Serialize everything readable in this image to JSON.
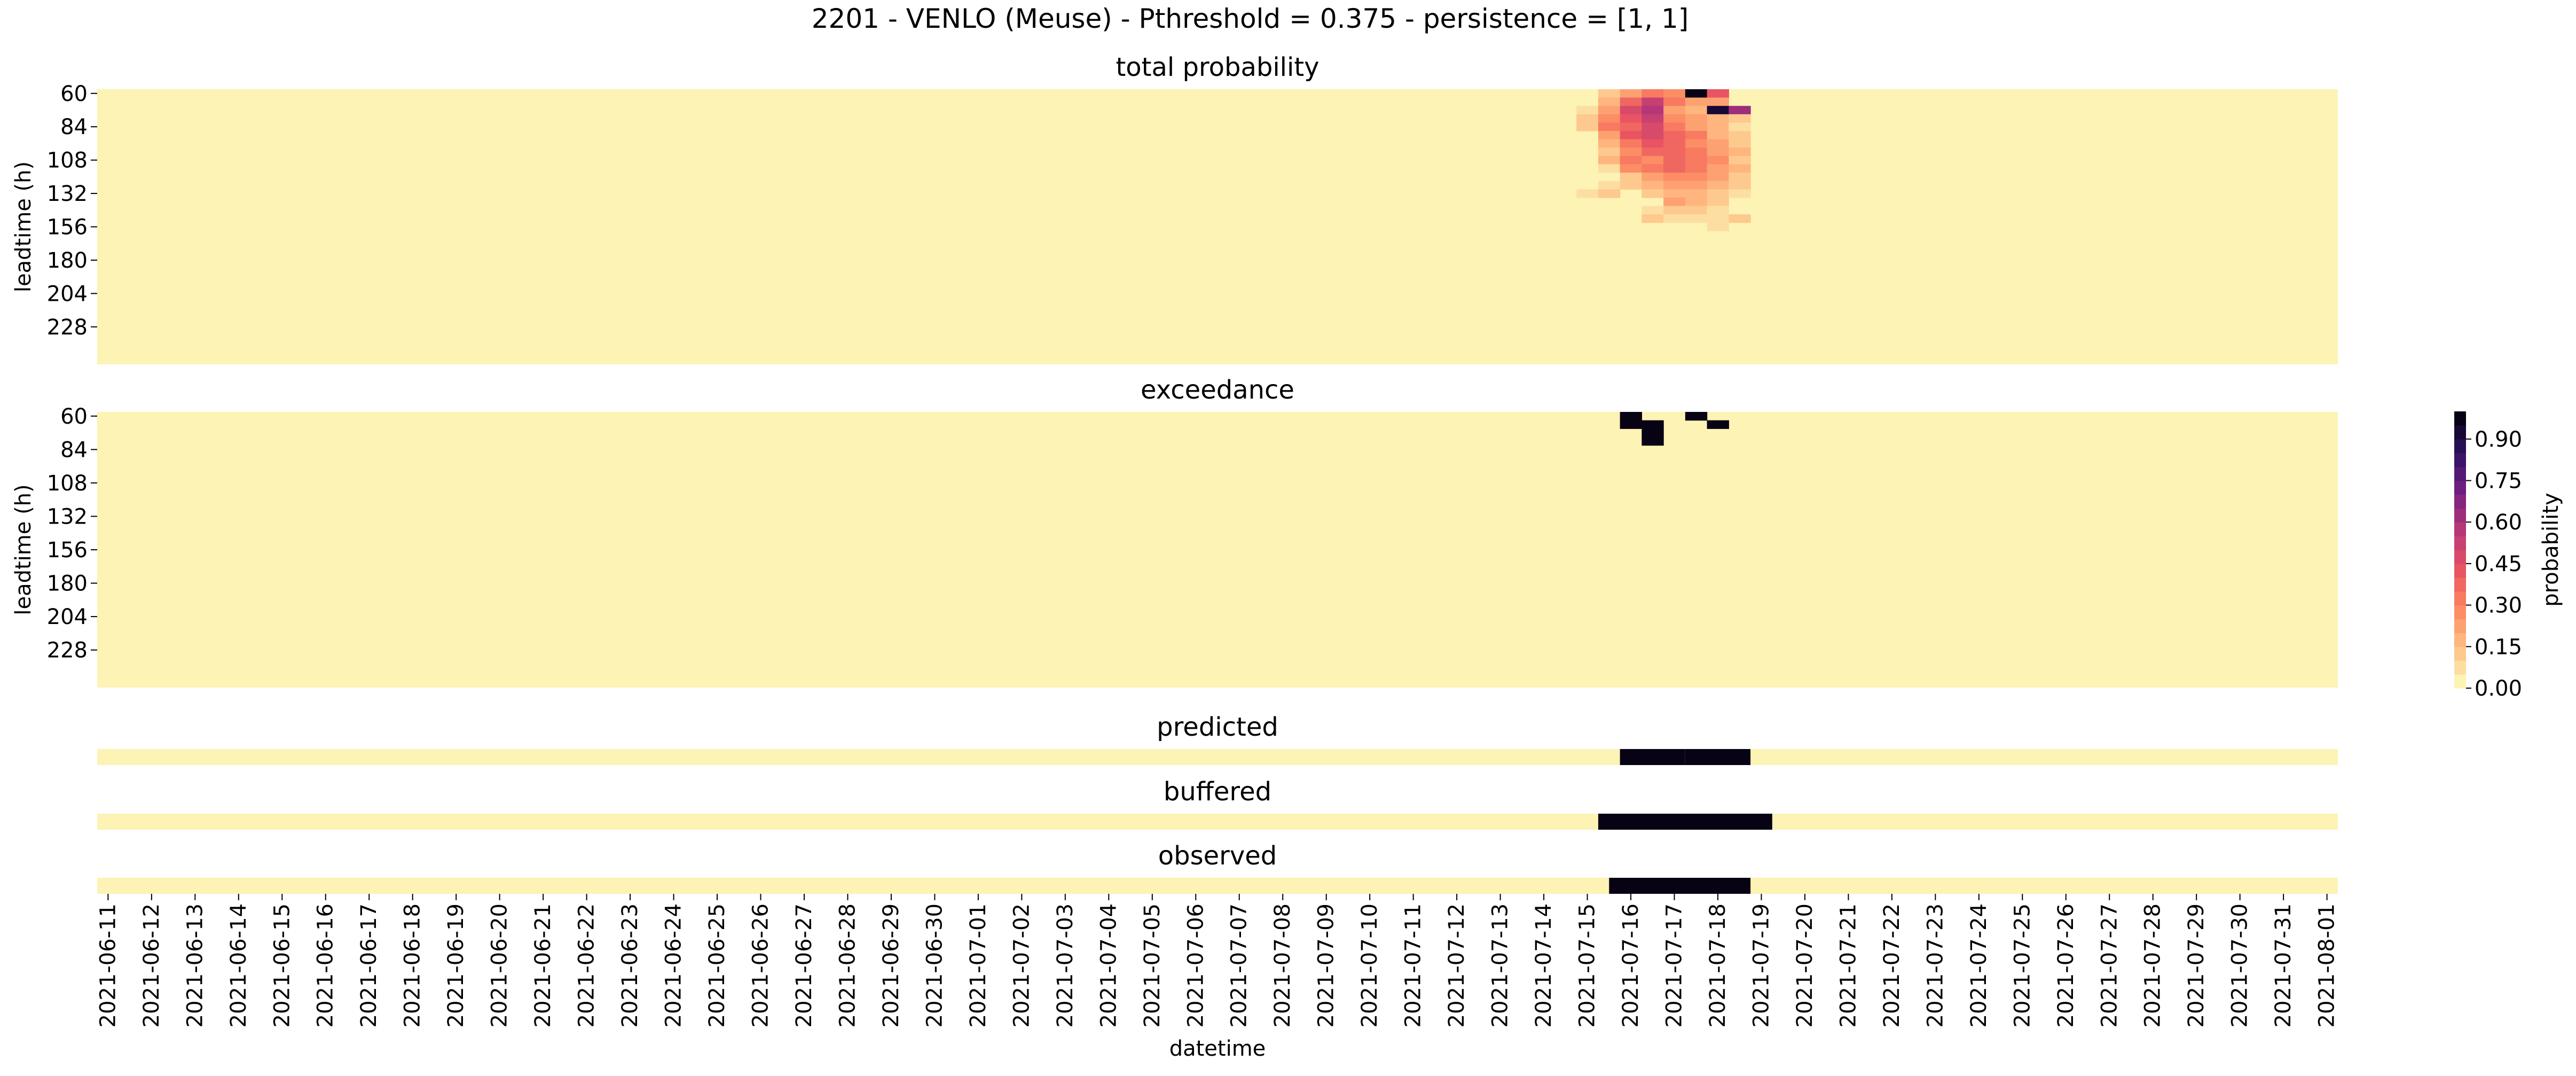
{
  "figure": {
    "title": "2201 - VENLO (Meuse) - Pthreshold = 0.375 - persistence = [1, 1]"
  },
  "colormap": {
    "name": "magma_r",
    "stops": [
      "#fcfdbf",
      "#fec287",
      "#fc8961",
      "#e85362",
      "#b73779",
      "#721f81",
      "#2c115f",
      "#000004"
    ]
  },
  "colorbar": {
    "label": "probability",
    "range": [
      0,
      1
    ],
    "levels": 20,
    "ticks": [
      0.0,
      0.15,
      0.3,
      0.45,
      0.6,
      0.75,
      0.9
    ],
    "tick_labels": [
      "0.00",
      "0.15",
      "0.30",
      "0.45",
      "0.60",
      "0.75",
      "0.90"
    ]
  },
  "chart_data": [
    {
      "type": "heatmap",
      "id": "total",
      "title": "total probability",
      "ylabel": "leadtime (h)",
      "xlabel": "",
      "y_tick_labels": [
        "60",
        "84",
        "108",
        "132",
        "156",
        "180",
        "204",
        "228"
      ],
      "leadtime_range_h": [
        60,
        252
      ],
      "leadtime_step_h": 6,
      "time_range": [
        "2021-06-11",
        "2021-08-01"
      ],
      "time_step_h": 12,
      "background_value": 0.0,
      "cells": [
        {
          "t": "2021-07-15T12",
          "l": 60,
          "v": 0.1
        },
        {
          "t": "2021-07-16T00",
          "l": 60,
          "v": 0.2
        },
        {
          "t": "2021-07-16T12",
          "l": 60,
          "v": 0.3
        },
        {
          "t": "2021-07-17T00",
          "l": 60,
          "v": 0.25
        },
        {
          "t": "2021-07-17T12",
          "l": 60,
          "v": 1.0
        },
        {
          "t": "2021-07-18T00",
          "l": 60,
          "v": 0.4
        },
        {
          "t": "2021-07-15T12",
          "l": 66,
          "v": 0.15
        },
        {
          "t": "2021-07-16T00",
          "l": 66,
          "v": 0.35
        },
        {
          "t": "2021-07-16T12",
          "l": 66,
          "v": 0.5
        },
        {
          "t": "2021-07-17T00",
          "l": 66,
          "v": 0.3
        },
        {
          "t": "2021-07-17T12",
          "l": 66,
          "v": 0.2
        },
        {
          "t": "2021-07-18T00",
          "l": 66,
          "v": 0.2
        },
        {
          "t": "2021-07-15T00",
          "l": 72,
          "v": 0.05
        },
        {
          "t": "2021-07-15T12",
          "l": 72,
          "v": 0.2
        },
        {
          "t": "2021-07-16T00",
          "l": 72,
          "v": 0.45
        },
        {
          "t": "2021-07-16T12",
          "l": 72,
          "v": 0.55
        },
        {
          "t": "2021-07-17T00",
          "l": 72,
          "v": 0.2
        },
        {
          "t": "2021-07-17T12",
          "l": 72,
          "v": 0.15
        },
        {
          "t": "2021-07-18T00",
          "l": 72,
          "v": 0.9
        },
        {
          "t": "2021-07-18T12",
          "l": 72,
          "v": 0.6
        },
        {
          "t": "2021-07-15T00",
          "l": 78,
          "v": 0.1
        },
        {
          "t": "2021-07-15T12",
          "l": 78,
          "v": 0.25
        },
        {
          "t": "2021-07-16T00",
          "l": 78,
          "v": 0.4
        },
        {
          "t": "2021-07-16T12",
          "l": 78,
          "v": 0.5
        },
        {
          "t": "2021-07-17T00",
          "l": 78,
          "v": 0.25
        },
        {
          "t": "2021-07-17T12",
          "l": 78,
          "v": 0.2
        },
        {
          "t": "2021-07-18T00",
          "l": 78,
          "v": 0.15
        },
        {
          "t": "2021-07-18T12",
          "l": 78,
          "v": 0.1
        },
        {
          "t": "2021-07-15T00",
          "l": 84,
          "v": 0.1
        },
        {
          "t": "2021-07-15T12",
          "l": 84,
          "v": 0.3
        },
        {
          "t": "2021-07-16T00",
          "l": 84,
          "v": 0.35
        },
        {
          "t": "2021-07-16T12",
          "l": 84,
          "v": 0.45
        },
        {
          "t": "2021-07-17T00",
          "l": 84,
          "v": 0.3
        },
        {
          "t": "2021-07-17T12",
          "l": 84,
          "v": 0.2
        },
        {
          "t": "2021-07-18T00",
          "l": 84,
          "v": 0.15
        },
        {
          "t": "2021-07-18T12",
          "l": 84,
          "v": 0.05
        },
        {
          "t": "2021-07-15T12",
          "l": 90,
          "v": 0.2
        },
        {
          "t": "2021-07-16T00",
          "l": 90,
          "v": 0.4
        },
        {
          "t": "2021-07-16T12",
          "l": 90,
          "v": 0.45
        },
        {
          "t": "2021-07-17T00",
          "l": 90,
          "v": 0.35
        },
        {
          "t": "2021-07-17T12",
          "l": 90,
          "v": 0.3
        },
        {
          "t": "2021-07-18T00",
          "l": 90,
          "v": 0.15
        },
        {
          "t": "2021-07-18T12",
          "l": 90,
          "v": 0.1
        },
        {
          "t": "2021-07-15T12",
          "l": 96,
          "v": 0.15
        },
        {
          "t": "2021-07-16T00",
          "l": 96,
          "v": 0.3
        },
        {
          "t": "2021-07-16T12",
          "l": 96,
          "v": 0.4
        },
        {
          "t": "2021-07-17T00",
          "l": 96,
          "v": 0.35
        },
        {
          "t": "2021-07-17T12",
          "l": 96,
          "v": 0.25
        },
        {
          "t": "2021-07-18T00",
          "l": 96,
          "v": 0.2
        },
        {
          "t": "2021-07-18T12",
          "l": 96,
          "v": 0.1
        },
        {
          "t": "2021-07-15T12",
          "l": 102,
          "v": 0.1
        },
        {
          "t": "2021-07-16T00",
          "l": 102,
          "v": 0.25
        },
        {
          "t": "2021-07-16T12",
          "l": 102,
          "v": 0.35
        },
        {
          "t": "2021-07-17T00",
          "l": 102,
          "v": 0.35
        },
        {
          "t": "2021-07-17T12",
          "l": 102,
          "v": 0.3
        },
        {
          "t": "2021-07-18T00",
          "l": 102,
          "v": 0.2
        },
        {
          "t": "2021-07-18T12",
          "l": 102,
          "v": 0.15
        },
        {
          "t": "2021-07-15T12",
          "l": 108,
          "v": 0.15
        },
        {
          "t": "2021-07-16T00",
          "l": 108,
          "v": 0.3
        },
        {
          "t": "2021-07-16T12",
          "l": 108,
          "v": 0.25
        },
        {
          "t": "2021-07-17T00",
          "l": 108,
          "v": 0.35
        },
        {
          "t": "2021-07-17T12",
          "l": 108,
          "v": 0.3
        },
        {
          "t": "2021-07-18T00",
          "l": 108,
          "v": 0.25
        },
        {
          "t": "2021-07-18T12",
          "l": 108,
          "v": 0.1
        },
        {
          "t": "2021-07-15T12",
          "l": 114,
          "v": 0.05
        },
        {
          "t": "2021-07-16T00",
          "l": 114,
          "v": 0.25
        },
        {
          "t": "2021-07-16T12",
          "l": 114,
          "v": 0.3
        },
        {
          "t": "2021-07-17T00",
          "l": 114,
          "v": 0.35
        },
        {
          "t": "2021-07-17T12",
          "l": 114,
          "v": 0.3
        },
        {
          "t": "2021-07-18T00",
          "l": 114,
          "v": 0.2
        },
        {
          "t": "2021-07-18T12",
          "l": 114,
          "v": 0.15
        },
        {
          "t": "2021-07-16T00",
          "l": 120,
          "v": 0.1
        },
        {
          "t": "2021-07-16T12",
          "l": 120,
          "v": 0.2
        },
        {
          "t": "2021-07-17T00",
          "l": 120,
          "v": 0.25
        },
        {
          "t": "2021-07-17T12",
          "l": 120,
          "v": 0.25
        },
        {
          "t": "2021-07-18T00",
          "l": 120,
          "v": 0.2
        },
        {
          "t": "2021-07-18T12",
          "l": 120,
          "v": 0.1
        },
        {
          "t": "2021-07-15T12",
          "l": 126,
          "v": 0.05
        },
        {
          "t": "2021-07-16T00",
          "l": 126,
          "v": 0.1
        },
        {
          "t": "2021-07-16T12",
          "l": 126,
          "v": 0.15
        },
        {
          "t": "2021-07-17T00",
          "l": 126,
          "v": 0.2
        },
        {
          "t": "2021-07-17T12",
          "l": 126,
          "v": 0.2
        },
        {
          "t": "2021-07-18T00",
          "l": 126,
          "v": 0.15
        },
        {
          "t": "2021-07-18T12",
          "l": 126,
          "v": 0.1
        },
        {
          "t": "2021-07-15T00",
          "l": 132,
          "v": 0.05
        },
        {
          "t": "2021-07-15T12",
          "l": 132,
          "v": 0.1
        },
        {
          "t": "2021-07-16T12",
          "l": 132,
          "v": 0.1
        },
        {
          "t": "2021-07-17T00",
          "l": 132,
          "v": 0.15
        },
        {
          "t": "2021-07-17T12",
          "l": 132,
          "v": 0.15
        },
        {
          "t": "2021-07-18T00",
          "l": 132,
          "v": 0.1
        },
        {
          "t": "2021-07-18T12",
          "l": 132,
          "v": 0.05
        },
        {
          "t": "2021-07-17T00",
          "l": 138,
          "v": 0.2
        },
        {
          "t": "2021-07-17T12",
          "l": 138,
          "v": 0.15
        },
        {
          "t": "2021-07-18T00",
          "l": 138,
          "v": 0.1
        },
        {
          "t": "2021-07-16T12",
          "l": 144,
          "v": 0.05
        },
        {
          "t": "2021-07-17T00",
          "l": 144,
          "v": 0.1
        },
        {
          "t": "2021-07-17T12",
          "l": 144,
          "v": 0.1
        },
        {
          "t": "2021-07-18T00",
          "l": 144,
          "v": 0.05
        },
        {
          "t": "2021-07-16T12",
          "l": 150,
          "v": 0.1
        },
        {
          "t": "2021-07-17T00",
          "l": 150,
          "v": 0.05
        },
        {
          "t": "2021-07-17T12",
          "l": 150,
          "v": 0.05
        },
        {
          "t": "2021-07-18T00",
          "l": 150,
          "v": 0.05
        },
        {
          "t": "2021-07-18T12",
          "l": 150,
          "v": 0.1
        },
        {
          "t": "2021-07-18T00",
          "l": 156,
          "v": 0.05
        }
      ]
    },
    {
      "type": "heatmap",
      "id": "exceedance",
      "title": "exceedance",
      "ylabel": "leadtime (h)",
      "xlabel": "",
      "y_tick_labels": [
        "60",
        "84",
        "108",
        "132",
        "156",
        "180",
        "204",
        "228"
      ],
      "leadtime_range_h": [
        60,
        252
      ],
      "leadtime_step_h": 6,
      "time_range": [
        "2021-06-11",
        "2021-08-01"
      ],
      "time_step_h": 12,
      "background_value": 0.0,
      "cells": [
        {
          "t": "2021-07-16T00",
          "l": 60,
          "v": 1
        },
        {
          "t": "2021-07-17T12",
          "l": 60,
          "v": 1
        },
        {
          "t": "2021-07-16T00",
          "l": 66,
          "v": 1
        },
        {
          "t": "2021-07-16T12",
          "l": 66,
          "v": 1
        },
        {
          "t": "2021-07-18T00",
          "l": 66,
          "v": 1
        },
        {
          "t": "2021-07-16T12",
          "l": 72,
          "v": 1
        },
        {
          "t": "2021-07-16T12",
          "l": 78,
          "v": 1
        }
      ]
    },
    {
      "type": "heatmap",
      "id": "predicted",
      "title": "predicted",
      "ylabel": "",
      "xlabel": "",
      "time_range": [
        "2021-06-11",
        "2021-08-01"
      ],
      "time_step_h": 12,
      "background_value": 0.0,
      "events": [
        {
          "start": "2021-07-16",
          "end": "2021-07-17",
          "v": 1
        },
        {
          "start": "2021-07-17T12",
          "end": "2021-07-18T12",
          "v": 1
        }
      ]
    },
    {
      "type": "heatmap",
      "id": "buffered",
      "title": "buffered",
      "ylabel": "",
      "xlabel": "",
      "time_range": [
        "2021-06-11",
        "2021-08-01"
      ],
      "time_step_h": 12,
      "background_value": 0.0,
      "events": [
        {
          "start": "2021-07-15T12",
          "end": "2021-07-19",
          "v": 1
        }
      ]
    },
    {
      "type": "heatmap",
      "id": "observed",
      "title": "observed",
      "ylabel": "",
      "xlabel": "datetime",
      "time_range": [
        "2021-06-11",
        "2021-08-01"
      ],
      "time_step_h": 12,
      "background_value": 0.0,
      "x_tick_labels": [
        "2021-06-11",
        "2021-06-12",
        "2021-06-13",
        "2021-06-14",
        "2021-06-15",
        "2021-06-16",
        "2021-06-17",
        "2021-06-18",
        "2021-06-19",
        "2021-06-20",
        "2021-06-21",
        "2021-06-22",
        "2021-06-23",
        "2021-06-24",
        "2021-06-25",
        "2021-06-26",
        "2021-06-27",
        "2021-06-28",
        "2021-06-29",
        "2021-06-30",
        "2021-07-01",
        "2021-07-02",
        "2021-07-03",
        "2021-07-04",
        "2021-07-05",
        "2021-07-06",
        "2021-07-07",
        "2021-07-08",
        "2021-07-09",
        "2021-07-10",
        "2021-07-11",
        "2021-07-12",
        "2021-07-13",
        "2021-07-14",
        "2021-07-15",
        "2021-07-16",
        "2021-07-17",
        "2021-07-18",
        "2021-07-19",
        "2021-07-20",
        "2021-07-21",
        "2021-07-22",
        "2021-07-23",
        "2021-07-24",
        "2021-07-25",
        "2021-07-26",
        "2021-07-27",
        "2021-07-28",
        "2021-07-29",
        "2021-07-30",
        "2021-07-31",
        "2021-08-01"
      ],
      "events": [
        {
          "start": "2021-07-15T18",
          "end": "2021-07-18T12",
          "v": 1
        }
      ]
    }
  ]
}
